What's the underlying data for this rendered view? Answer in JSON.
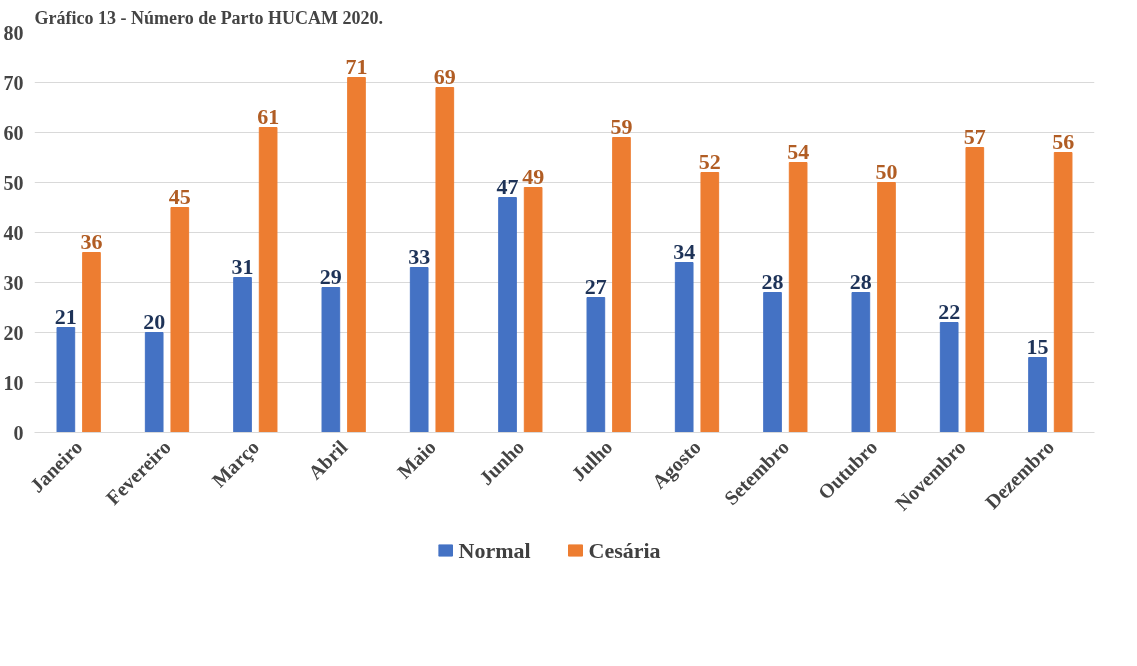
{
  "chart_data": {
    "type": "bar",
    "title": "Gráfico 13 - Número de Parto HUCAM 2020.",
    "categories": [
      "Janeiro",
      "Fevereiro",
      "Março",
      "Abril",
      "Maio",
      "Junho",
      "Julho",
      "Agosto",
      "Setembro",
      "Outubro",
      "Novembro",
      "Dezembro"
    ],
    "series": [
      {
        "name": "Normal",
        "color": "#4472c4",
        "values": [
          21,
          20,
          31,
          29,
          33,
          47,
          27,
          34,
          28,
          28,
          22,
          15
        ]
      },
      {
        "name": "Cesária",
        "color": "#ed7d31",
        "values": [
          36,
          45,
          61,
          71,
          69,
          49,
          59,
          52,
          54,
          50,
          57,
          56
        ]
      }
    ],
    "ylim": [
      0,
      80
    ],
    "yticks": [
      0,
      10,
      20,
      30,
      40,
      50,
      60,
      70,
      80
    ],
    "grid": "y",
    "legend": "bottom",
    "data_labels": true
  }
}
